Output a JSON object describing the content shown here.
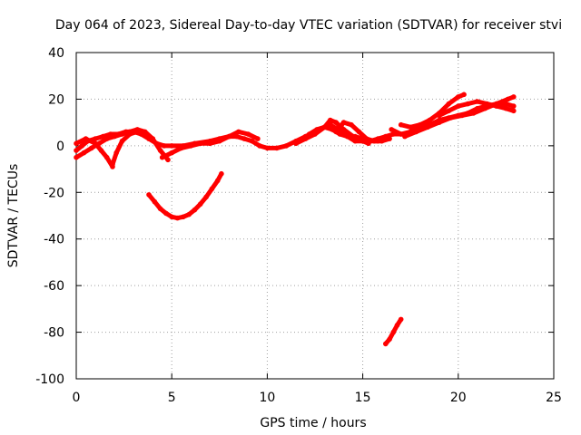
{
  "chart_data": {
    "type": "line",
    "title": "Day 064 of 2023, Sidereal Day-to-day VTEC variation (SDTVAR) for receiver stvi",
    "xlabel": "GPS time / hours",
    "ylabel": "SDTVAR / TECUs",
    "xlim": [
      0,
      25
    ],
    "ylim": [
      -100,
      40
    ],
    "xticks": [
      "0",
      "5",
      "10",
      "15",
      "20",
      "25"
    ],
    "yticks": [
      "40",
      "20",
      "0",
      "-20",
      "-40",
      "-60",
      "-80",
      "-100"
    ],
    "grid": true,
    "color": "#ff0000",
    "series": [
      {
        "x": [
          0.0,
          0.3,
          0.6,
          1.0,
          1.4,
          1.8,
          2.2,
          2.6,
          3.0,
          3.4,
          3.8,
          4.2,
          4.6,
          5.0,
          5.6,
          6.2,
          7.0,
          7.5,
          8.0,
          8.4,
          8.8,
          9.2,
          9.6,
          10.0,
          10.5,
          11.0,
          11.5,
          12.0,
          12.5,
          13.0,
          13.3,
          13.7,
          14.2,
          14.6,
          15.0,
          15.4,
          15.8,
          16.2,
          16.6,
          17.0
        ],
        "y": [
          -2,
          0,
          2,
          3,
          4,
          5,
          5,
          6,
          6,
          5,
          3,
          1,
          0,
          0,
          0,
          1,
          2,
          3,
          4,
          4,
          3,
          2,
          0,
          -1,
          -1,
          0,
          2,
          4,
          6,
          8,
          9,
          7,
          4,
          2,
          2,
          2,
          3,
          4,
          5,
          5
        ]
      },
      {
        "x": [
          0.0,
          0.4,
          0.8,
          1.2,
          1.6,
          2.0,
          2.4,
          2.8,
          3.2,
          3.6,
          4.0,
          4.4,
          4.8
        ],
        "y": [
          -5,
          -3,
          -1,
          1,
          3,
          4,
          5,
          6,
          7,
          6,
          3,
          -2,
          -6
        ]
      },
      {
        "x": [
          0.0,
          0.5,
          1.0,
          1.3,
          1.6,
          1.9
        ],
        "y": [
          1,
          3,
          1,
          -2,
          -5,
          -9
        ]
      },
      {
        "x": [
          1.9,
          2.1,
          2.4,
          2.8,
          3.2,
          3.6,
          4.0
        ],
        "y": [
          -8,
          -3,
          2,
          5,
          6,
          5,
          3
        ]
      },
      {
        "x": [
          4.5,
          5.0,
          5.5,
          6.0,
          6.5,
          7.0,
          7.5,
          8.0,
          8.5,
          9.0,
          9.5
        ],
        "y": [
          -5,
          -3,
          -1,
          0,
          1,
          1,
          2,
          4,
          6,
          5,
          3
        ]
      },
      {
        "x": [
          3.8,
          4.1,
          4.4,
          4.7,
          5.0,
          5.3,
          5.6,
          5.9,
          6.2,
          6.5,
          6.8,
          7.1,
          7.4,
          7.6
        ],
        "y": [
          -21,
          -24,
          -27,
          -29,
          -30.5,
          -31,
          -30.5,
          -29.5,
          -27.5,
          -25,
          -22,
          -18.5,
          -15,
          -12
        ]
      },
      {
        "x": [
          11.5,
          12.0,
          12.5,
          13.0,
          13.3,
          13.6,
          14.0,
          14.5,
          15.0,
          15.3
        ],
        "y": [
          1,
          3,
          5,
          8,
          11,
          10,
          7,
          4,
          2,
          1
        ]
      },
      {
        "x": [
          12.2,
          12.6,
          13.0,
          13.4,
          13.8,
          14.2,
          14.6,
          15.0,
          15.4,
          15.8
        ],
        "y": [
          5,
          7,
          8,
          7,
          5,
          4,
          4,
          3,
          2,
          2
        ]
      },
      {
        "x": [
          13.6,
          14.0,
          14.4,
          14.8,
          15.2,
          15.6,
          16.0,
          16.4
        ],
        "y": [
          6,
          10,
          9,
          6,
          3,
          2,
          2,
          3
        ]
      },
      {
        "x": [
          16.2,
          16.4,
          16.6,
          16.8,
          17.0
        ],
        "y": [
          -85,
          -83,
          -80,
          -77,
          -74.5
        ]
      },
      {
        "x": [
          16.5,
          17.0,
          17.5,
          18.0,
          18.5,
          19.0,
          19.5,
          20.0,
          20.5,
          21.0,
          21.5,
          22.0,
          22.5,
          22.9
        ],
        "y": [
          7,
          5,
          6,
          8,
          9,
          11,
          12,
          13,
          14,
          16,
          17,
          18,
          18,
          17
        ]
      },
      {
        "x": [
          17.0,
          17.5,
          18.0,
          18.5,
          19.0,
          19.5,
          20.0,
          20.3
        ],
        "y": [
          9,
          8,
          9,
          11,
          14,
          18,
          21,
          22
        ]
      },
      {
        "x": [
          17.2,
          17.8,
          18.4,
          19.0,
          19.6,
          20.2,
          20.8,
          21.4,
          22.0,
          22.6,
          22.9
        ],
        "y": [
          4,
          6,
          8,
          10,
          12,
          13,
          14,
          16,
          18,
          20,
          21
        ]
      },
      {
        "x": [
          19.0,
          19.5,
          20.0,
          20.5,
          21.0,
          21.5,
          22.0,
          22.5,
          22.9
        ],
        "y": [
          13,
          15,
          17,
          18,
          19,
          18,
          17,
          16,
          15
        ]
      }
    ]
  }
}
